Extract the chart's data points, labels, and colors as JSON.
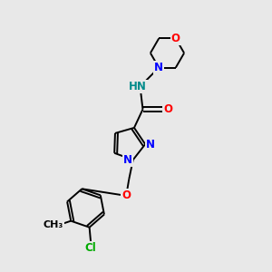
{
  "background_color": "#e8e8e8",
  "bond_color": "#000000",
  "atom_colors": {
    "N": "#0000ff",
    "O": "#ff0000",
    "Cl": "#00aa00",
    "H": "#008b8b",
    "C": "#000000"
  },
  "font_size_atom": 8.5,
  "fig_width": 3.0,
  "fig_height": 3.0
}
